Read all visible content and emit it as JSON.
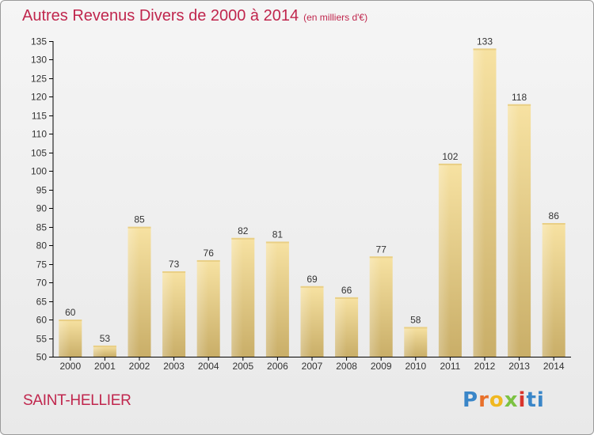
{
  "title": "Autres Revenus Divers de 2000 à 2014",
  "subtitle": "(en milliers d'€)",
  "commune": "SAINT-HELLIER",
  "logo": "Proxiti",
  "colors": {
    "title": "#c0264d",
    "bar_light": "#f7e2a2",
    "bar_dark": "#c9ae68",
    "axis": "#000000"
  },
  "chart_data": {
    "type": "bar",
    "title": "Autres Revenus Divers de 2000 à 2014",
    "subtitle": "(en milliers d'€)",
    "xlabel": "",
    "ylabel": "",
    "categories": [
      "2000",
      "2001",
      "2002",
      "2003",
      "2004",
      "2005",
      "2006",
      "2007",
      "2008",
      "2009",
      "2010",
      "2011",
      "2012",
      "2013",
      "2014"
    ],
    "values": [
      60,
      53,
      85,
      73,
      76,
      82,
      81,
      69,
      66,
      77,
      58,
      102,
      133,
      118,
      86
    ],
    "ylim": [
      50,
      135
    ],
    "yticks": [
      50,
      55,
      60,
      65,
      70,
      75,
      80,
      85,
      90,
      95,
      100,
      105,
      110,
      115,
      120,
      125,
      130,
      135
    ],
    "grid": false,
    "legend": "none",
    "data_labels": true
  }
}
